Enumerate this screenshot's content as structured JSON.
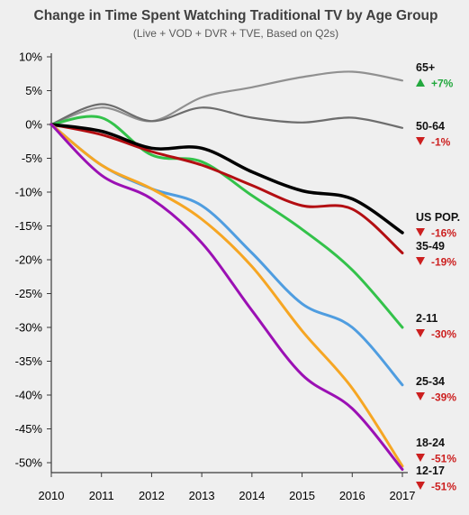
{
  "chart_data": {
    "type": "line",
    "title": "Change in Time Spent Watching Traditional TV by Age Group",
    "subtitle": "(Live + VOD + DVR + TVE, Based on Q2s)",
    "xlabel": "",
    "ylabel": "",
    "x": [
      2010,
      2011,
      2012,
      2013,
      2014,
      2015,
      2016,
      2017
    ],
    "x_tick_labels": [
      "2010",
      "2011",
      "2012",
      "2013",
      "2014",
      "2015",
      "2016",
      "2017"
    ],
    "ylim": [
      -51,
      10
    ],
    "y_ticks": [
      10,
      5,
      0,
      -5,
      -10,
      -15,
      -20,
      -25,
      -30,
      -35,
      -40,
      -45,
      -50
    ],
    "y_tick_labels": [
      "10%",
      "5%",
      "0%",
      "-5%",
      "-10%",
      "-15%",
      "-20%",
      "-25%",
      "-30%",
      "-35%",
      "-40%",
      "-45%",
      "-50%"
    ],
    "grid": false,
    "legend": "end-of-line labels",
    "series": [
      {
        "name": "65+",
        "change_label": "+7%",
        "direction": "up",
        "color": "#909090",
        "stroke_width": 2.2,
        "values": [
          0,
          2.5,
          0.5,
          4,
          5.5,
          7,
          7.8,
          6.5
        ]
      },
      {
        "name": "50-64",
        "change_label": "-1%",
        "direction": "down",
        "color": "#6d6d6d",
        "stroke_width": 2.2,
        "values": [
          0,
          3,
          0.5,
          2.5,
          1,
          0.3,
          1,
          -0.5
        ]
      },
      {
        "name": "2-11",
        "change_label": "-30%",
        "direction": "down",
        "color": "#33c24a",
        "stroke_width": 3,
        "values": [
          0,
          1,
          -4.5,
          -5.5,
          -10.5,
          -15.5,
          -21.5,
          -30
        ]
      },
      {
        "name": "35-49",
        "change_label": "-19%",
        "direction": "down",
        "color": "#b30e12",
        "stroke_width": 3,
        "values": [
          0,
          -1.5,
          -4,
          -6,
          -9,
          -12,
          -12.5,
          -19
        ]
      },
      {
        "name": "US POP.",
        "change_label": "-16%",
        "direction": "down",
        "color": "#000000",
        "stroke_width": 3.5,
        "values": [
          0,
          -1,
          -3.5,
          -3.5,
          -7,
          -9.8,
          -11,
          -16
        ]
      },
      {
        "name": "25-34",
        "change_label": "-39%",
        "direction": "down",
        "color": "#4f9de0",
        "stroke_width": 3,
        "values": [
          0,
          -6,
          -9.5,
          -12,
          -19,
          -26.5,
          -30,
          -38.5
        ]
      },
      {
        "name": "18-24",
        "change_label": "-51%",
        "direction": "down",
        "color": "#f6a623",
        "stroke_width": 3,
        "values": [
          0,
          -6,
          -9.5,
          -14,
          -21,
          -30.5,
          -39,
          -50.5
        ]
      },
      {
        "name": "12-17",
        "change_label": "-51%",
        "direction": "down",
        "color": "#9b10b4",
        "stroke_width": 3,
        "values": [
          0,
          -7.5,
          -11,
          -17.5,
          -27.5,
          -37,
          -42,
          -51
        ]
      }
    ],
    "colors": {
      "up": "#23a83e",
      "down": "#cc1f1f",
      "axis": "#3a3a3a",
      "background": "#efefef"
    }
  }
}
